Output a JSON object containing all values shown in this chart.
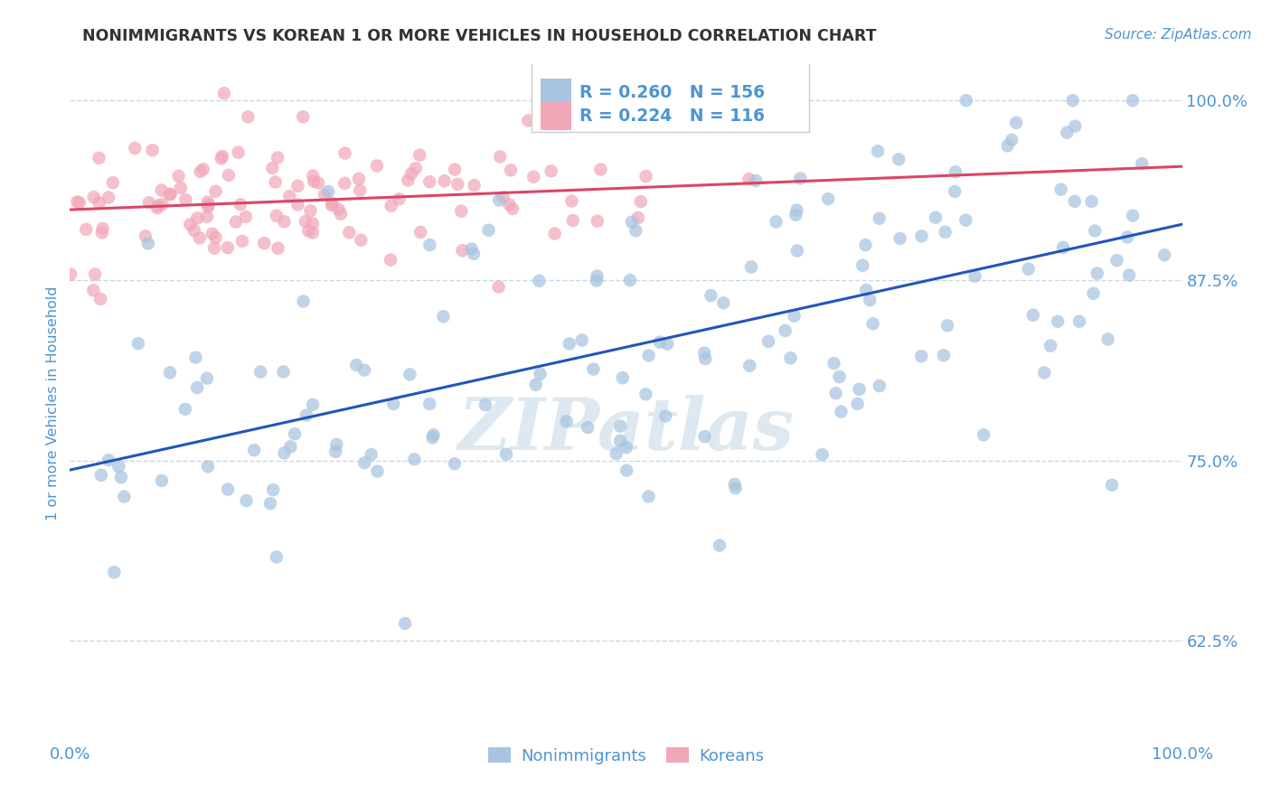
{
  "title": "NONIMMIGRANTS VS KOREAN 1 OR MORE VEHICLES IN HOUSEHOLD CORRELATION CHART",
  "source": "Source: ZipAtlas.com",
  "ylabel": "1 or more Vehicles in Household",
  "xlim": [
    0.0,
    1.0
  ],
  "ylim": [
    0.555,
    1.025
  ],
  "yticks": [
    0.625,
    0.75,
    0.875,
    1.0
  ],
  "ytick_labels": [
    "62.5%",
    "75.0%",
    "87.5%",
    "100.0%"
  ],
  "xticks": [
    0.0,
    1.0
  ],
  "xtick_labels": [
    "0.0%",
    "100.0%"
  ],
  "legend_labels": [
    "Nonimmigrants",
    "Koreans"
  ],
  "blue_R": 0.26,
  "blue_N": 156,
  "pink_R": 0.224,
  "pink_N": 116,
  "blue_color": "#a8c4e0",
  "pink_color": "#f0a8b8",
  "blue_line_color": "#2255bb",
  "pink_line_color": "#dd4466",
  "title_color": "#333333",
  "axis_color": "#4d94d4",
  "grid_color": "#c8d8e8",
  "watermark_color": "#dde8f0",
  "background_color": "#ffffff",
  "blue_seed": 12345,
  "pink_seed": 54321,
  "blue_n": 156,
  "pink_n": 116,
  "blue_slope": 0.16,
  "blue_intercept": 0.755,
  "blue_noise_std": 0.065,
  "pink_slope": 0.045,
  "pink_intercept": 0.925,
  "pink_noise_std": 0.025,
  "dot_size": 110,
  "dot_alpha": 0.72,
  "line_width": 2.2
}
